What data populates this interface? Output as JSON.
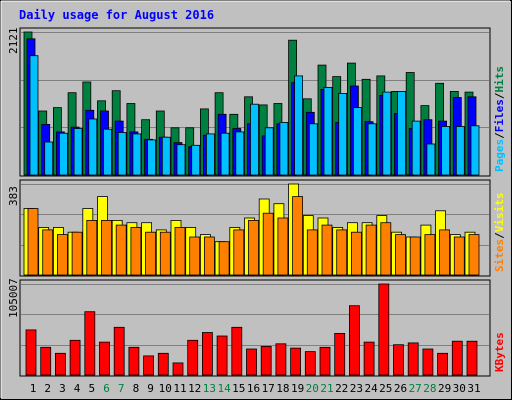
{
  "title": "Daily usage for August 2016",
  "colors": {
    "background": "#c0c0c0",
    "hits": "#008040",
    "files": "#0000ff",
    "pages": "#00c0ff",
    "visits": "#ffff00",
    "sites": "#ff8000",
    "kbytes": "#ff0000",
    "weekend_label": "#008040",
    "label_default": "#000080"
  },
  "chart_data": [
    {
      "type": "bar",
      "panel": "top",
      "title": "Daily usage for August 2016",
      "categories": [
        "1",
        "2",
        "3",
        "4",
        "5",
        "6",
        "7",
        "8",
        "9",
        "10",
        "11",
        "12",
        "13",
        "14",
        "15",
        "16",
        "17",
        "18",
        "19",
        "20",
        "21",
        "22",
        "23",
        "24",
        "25",
        "26",
        "27",
        "28",
        "29",
        "30",
        "31"
      ],
      "weekend_categories": [
        "6",
        "7",
        "13",
        "14",
        "20",
        "21",
        "27",
        "28"
      ],
      "ymax_label": "2121",
      "ylim": [
        0,
        2121
      ],
      "legend": [
        {
          "label": "Pages",
          "color": "#00c0ff"
        },
        {
          "label": "/",
          "color": "#000000"
        },
        {
          "label": "Files",
          "color": "#0000ff"
        },
        {
          "label": "/",
          "color": "#000000"
        },
        {
          "label": "Hits",
          "color": "#008040"
        }
      ],
      "series": [
        {
          "name": "Hits",
          "values": [
            2121,
            950,
            1000,
            1220,
            1380,
            1100,
            1250,
            1060,
            820,
            950,
            700,
            700,
            980,
            1220,
            900,
            1160,
            1040,
            1060,
            2000,
            1130,
            1630,
            1460,
            1660,
            1420,
            1470,
            1240,
            1520,
            1030,
            1360,
            1240,
            1230
          ]
        },
        {
          "name": "Files",
          "values": [
            2020,
            750,
            640,
            710,
            960,
            950,
            800,
            640,
            530,
            560,
            480,
            420,
            590,
            900,
            690,
            760,
            580,
            760,
            1370,
            930,
            1270,
            780,
            1320,
            790,
            1180,
            910,
            690,
            820,
            800,
            1150,
            1160
          ]
        },
        {
          "name": "Pages",
          "values": [
            1770,
            490,
            620,
            690,
            830,
            680,
            630,
            610,
            520,
            560,
            450,
            440,
            610,
            620,
            640,
            1050,
            700,
            780,
            1470,
            760,
            1300,
            1210,
            1000,
            760,
            1230,
            1240,
            800,
            460,
            720,
            720,
            730
          ]
        }
      ]
    },
    {
      "type": "bar",
      "panel": "middle",
      "ymax_label": "383",
      "ylim": [
        0,
        383
      ],
      "legend": [
        {
          "label": "Sites",
          "color": "#ff8000"
        },
        {
          "label": "/",
          "color": "#000000"
        },
        {
          "label": "Visits",
          "color": "#ffff00"
        }
      ],
      "series": [
        {
          "name": "Visits",
          "values": [
            280,
            200,
            200,
            180,
            280,
            330,
            230,
            220,
            220,
            190,
            230,
            200,
            170,
            140,
            200,
            240,
            320,
            300,
            383,
            250,
            240,
            200,
            220,
            220,
            250,
            180,
            160,
            210,
            270,
            170,
            180
          ]
        },
        {
          "name": "Sites",
          "values": [
            280,
            190,
            170,
            180,
            230,
            230,
            210,
            200,
            180,
            180,
            200,
            160,
            160,
            140,
            190,
            230,
            260,
            240,
            330,
            190,
            210,
            190,
            180,
            210,
            220,
            170,
            160,
            170,
            190,
            160,
            170
          ]
        }
      ]
    },
    {
      "type": "bar",
      "panel": "bottom",
      "ymax_label": "105007",
      "ylim": [
        0,
        105007
      ],
      "legend": [
        {
          "label": "KBytes",
          "color": "#ff0000"
        }
      ],
      "series": [
        {
          "name": "KBytes",
          "values": [
            52000,
            32000,
            25000,
            40000,
            73000,
            38000,
            55000,
            32000,
            22000,
            25000,
            14000,
            40000,
            49000,
            45000,
            55000,
            30000,
            33000,
            36000,
            31000,
            27000,
            32000,
            48000,
            80000,
            38000,
            105007,
            35000,
            37000,
            30000,
            25000,
            39000,
            39000
          ]
        }
      ]
    }
  ]
}
